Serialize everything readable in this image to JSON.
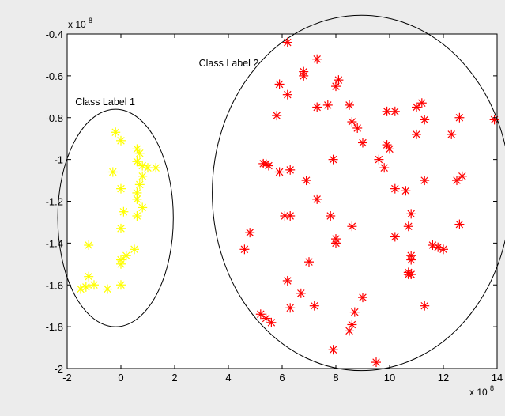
{
  "chart_data": {
    "type": "scatter",
    "xlim": [
      -2,
      14
    ],
    "ylim": [
      -2,
      -0.4
    ],
    "x_ticks": [
      -2,
      0,
      2,
      4,
      6,
      8,
      10,
      12,
      14
    ],
    "y_ticks": [
      -2,
      -1.8,
      -1.6,
      -1.4,
      -1.2,
      -1,
      -0.8,
      -0.6,
      -0.4
    ],
    "x_tick_labels": [
      "-2",
      "0",
      "2",
      "4",
      "6",
      "8",
      "10",
      "12",
      "14"
    ],
    "y_tick_labels": [
      "-2",
      "-1.8",
      "-1.6",
      "-1.4",
      "-1.2",
      "-1",
      "-0.8",
      "-0.6",
      "-0.4"
    ],
    "x_exponent": {
      "base": "x 10",
      "power": "8"
    },
    "y_exponent": {
      "base": "x 10",
      "power": "8"
    },
    "grid": false,
    "marker": "asterisk",
    "series": [
      {
        "color": "#ffff00",
        "points": [
          [
            -0.2,
            -0.87
          ],
          [
            0.0,
            -0.91
          ],
          [
            0.6,
            -0.95
          ],
          [
            0.7,
            -0.97
          ],
          [
            0.6,
            -1.01
          ],
          [
            0.8,
            -1.03
          ],
          [
            1.0,
            -1.04
          ],
          [
            1.3,
            -1.04
          ],
          [
            -0.3,
            -1.06
          ],
          [
            0.8,
            -1.08
          ],
          [
            0.7,
            -1.12
          ],
          [
            0.0,
            -1.14
          ],
          [
            0.6,
            -1.16
          ],
          [
            0.6,
            -1.19
          ],
          [
            0.8,
            -1.23
          ],
          [
            0.1,
            -1.25
          ],
          [
            0.6,
            -1.27
          ],
          [
            0.0,
            -1.33
          ],
          [
            0.5,
            -1.43
          ],
          [
            -1.2,
            -1.41
          ],
          [
            0.2,
            -1.46
          ],
          [
            0.0,
            -1.48
          ],
          [
            0.0,
            -1.5
          ],
          [
            -1.2,
            -1.56
          ],
          [
            -1.0,
            -1.6
          ],
          [
            0.0,
            -1.6
          ],
          [
            -1.3,
            -1.61
          ],
          [
            -1.5,
            -1.62
          ],
          [
            -0.5,
            -1.62
          ]
        ]
      },
      {
        "color": "#ff0000",
        "points": [
          [
            6.2,
            -0.44
          ],
          [
            7.3,
            -0.52
          ],
          [
            6.8,
            -0.58
          ],
          [
            8.1,
            -0.62
          ],
          [
            6.8,
            -0.6
          ],
          [
            5.9,
            -0.64
          ],
          [
            8.0,
            -0.65
          ],
          [
            6.2,
            -0.69
          ],
          [
            7.7,
            -0.74
          ],
          [
            7.3,
            -0.75
          ],
          [
            8.5,
            -0.74
          ],
          [
            11.2,
            -0.73
          ],
          [
            11.0,
            -0.75
          ],
          [
            9.9,
            -0.77
          ],
          [
            10.2,
            -0.77
          ],
          [
            5.8,
            -0.79
          ],
          [
            12.6,
            -0.8
          ],
          [
            11.3,
            -0.81
          ],
          [
            8.6,
            -0.82
          ],
          [
            8.8,
            -0.85
          ],
          [
            13.9,
            -0.81
          ],
          [
            11.0,
            -0.88
          ],
          [
            12.3,
            -0.88
          ],
          [
            9.0,
            -0.92
          ],
          [
            9.9,
            -0.93
          ],
          [
            10.0,
            -0.95
          ],
          [
            5.3,
            -1.02
          ],
          [
            5.5,
            -1.03
          ],
          [
            5.4,
            -1.02
          ],
          [
            6.3,
            -1.05
          ],
          [
            7.9,
            -1.0
          ],
          [
            9.6,
            -1.0
          ],
          [
            9.8,
            -1.04
          ],
          [
            12.7,
            -1.08
          ],
          [
            12.5,
            -1.1
          ],
          [
            11.3,
            -1.1
          ],
          [
            5.9,
            -1.06
          ],
          [
            6.9,
            -1.1
          ],
          [
            10.2,
            -1.14
          ],
          [
            10.6,
            -1.15
          ],
          [
            7.3,
            -1.19
          ],
          [
            6.1,
            -1.27
          ],
          [
            6.3,
            -1.27
          ],
          [
            7.8,
            -1.27
          ],
          [
            10.8,
            -1.26
          ],
          [
            4.8,
            -1.35
          ],
          [
            8.6,
            -1.32
          ],
          [
            10.7,
            -1.32
          ],
          [
            12.6,
            -1.31
          ],
          [
            10.2,
            -1.37
          ],
          [
            11.6,
            -1.41
          ],
          [
            11.8,
            -1.42
          ],
          [
            12.0,
            -1.43
          ],
          [
            8.0,
            -1.38
          ],
          [
            8.0,
            -1.4
          ],
          [
            4.6,
            -1.43
          ],
          [
            10.8,
            -1.46
          ],
          [
            10.8,
            -1.48
          ],
          [
            7.0,
            -1.49
          ],
          [
            10.7,
            -1.54
          ],
          [
            10.7,
            -1.55
          ],
          [
            10.8,
            -1.55
          ],
          [
            6.2,
            -1.58
          ],
          [
            6.7,
            -1.64
          ],
          [
            6.3,
            -1.71
          ],
          [
            7.2,
            -1.7
          ],
          [
            11.3,
            -1.7
          ],
          [
            9.0,
            -1.66
          ],
          [
            8.7,
            -1.73
          ],
          [
            5.2,
            -1.74
          ],
          [
            5.4,
            -1.76
          ],
          [
            5.6,
            -1.78
          ],
          [
            8.6,
            -1.79
          ],
          [
            8.5,
            -1.82
          ],
          [
            7.9,
            -1.91
          ],
          [
            9.5,
            -1.97
          ]
        ]
      }
    ],
    "annotations": [
      {
        "text": "Class Label 1",
        "x": -1.7,
        "y": -0.74
      },
      {
        "text": "Class Label 2",
        "x": 2.9,
        "y": -0.555
      }
    ],
    "ellipses": [
      {
        "label": "Class Label 1",
        "cx": -0.2,
        "cy": -1.28,
        "rx": 2.15,
        "ry": 0.52
      },
      {
        "label": "Class Label 2",
        "cx": 8.95,
        "cy": -1.16,
        "rx": 5.55,
        "ry": 0.85
      }
    ]
  }
}
